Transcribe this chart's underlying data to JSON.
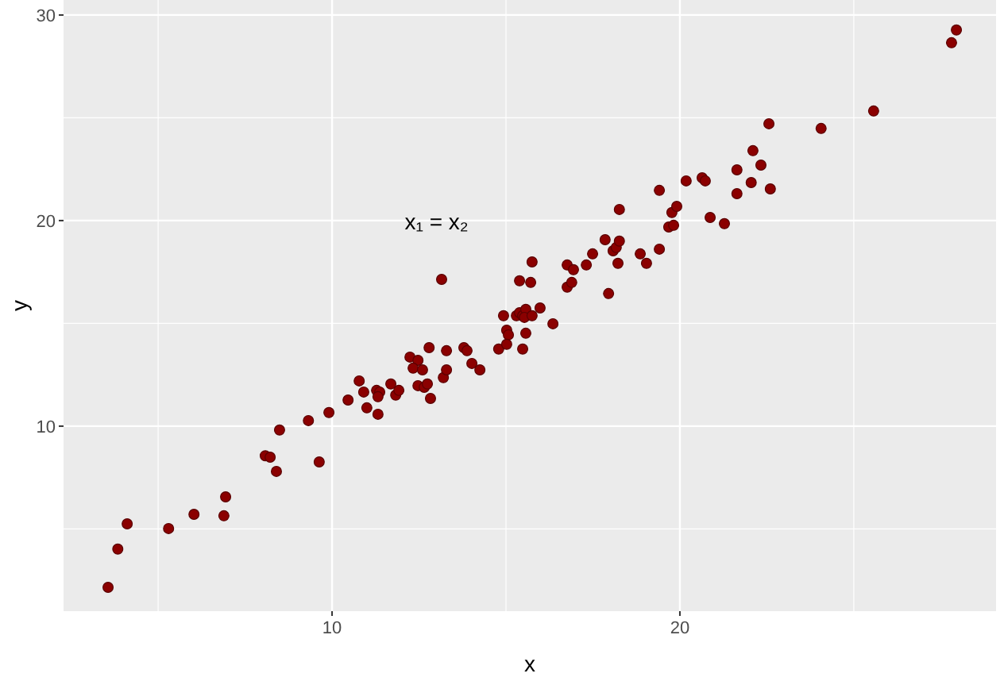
{
  "chart_data": {
    "type": "scatter",
    "xlabel": "x",
    "ylabel": "y",
    "xlim": [
      2.28,
      29.09
    ],
    "ylim": [
      1.0,
      30.73
    ],
    "xticks": [
      {
        "value": 5,
        "label": null
      },
      10,
      {
        "value": 15,
        "label": null
      },
      20,
      {
        "value": 25,
        "label": null
      }
    ],
    "yticks": [
      {
        "value": 5,
        "label": null
      },
      10,
      {
        "value": 15,
        "label": null
      },
      20,
      {
        "value": 25,
        "label": null
      },
      30
    ],
    "grid": true,
    "marker": "circle",
    "annotations": [
      "x₁ = x₂"
    ],
    "series": [
      {
        "color": "#8b0000",
        "x": [
          3.56,
          3.84,
          4.11,
          5.3,
          6.03,
          6.89,
          6.94,
          8.08,
          8.22,
          8.4,
          8.49,
          9.32,
          9.63,
          9.91,
          10.46,
          10.78,
          10.91,
          11.0,
          11.28,
          11.37,
          11.32,
          11.32,
          11.69,
          11.83,
          11.92,
          12.24,
          12.47,
          12.33,
          12.6,
          12.79,
          12.47,
          12.65,
          12.74,
          12.83,
          13.2,
          13.29,
          13.29,
          13.15,
          13.79,
          13.88,
          14.02,
          14.25,
          14.79,
          14.93,
          15.02,
          15.07,
          15.02,
          15.48,
          15.57,
          15.3,
          15.39,
          15.48,
          15.57,
          15.53,
          15.75,
          15.98,
          16.35,
          15.39,
          15.71,
          15.75,
          16.76,
          16.94,
          16.76,
          16.89,
          17.31,
          17.49,
          17.85,
          17.95,
          18.08,
          18.17,
          18.26,
          18.22,
          18.26,
          18.86,
          19.04,
          19.41,
          19.41,
          19.68,
          19.82,
          19.77,
          19.91,
          20.18,
          20.64,
          20.73,
          20.87,
          21.28,
          21.64,
          21.64,
          22.05,
          22.1,
          22.33,
          22.6,
          22.56,
          24.06,
          25.57,
          27.81,
          27.95
        ],
        "values": [
          2.16,
          4.02,
          5.25,
          5.02,
          5.71,
          5.64,
          6.56,
          8.56,
          8.49,
          7.8,
          9.81,
          10.27,
          8.26,
          10.66,
          11.27,
          12.2,
          11.66,
          10.89,
          11.74,
          11.66,
          11.43,
          10.58,
          12.05,
          11.51,
          11.74,
          13.36,
          13.2,
          12.82,
          12.74,
          13.82,
          11.97,
          11.89,
          12.05,
          11.35,
          12.36,
          13.67,
          12.74,
          17.14,
          13.82,
          13.67,
          13.05,
          12.74,
          13.75,
          15.37,
          14.67,
          14.44,
          13.98,
          13.75,
          14.52,
          15.37,
          15.52,
          15.37,
          15.68,
          15.29,
          15.37,
          15.75,
          14.98,
          17.07,
          16.99,
          17.99,
          17.84,
          17.61,
          16.76,
          16.99,
          17.84,
          18.38,
          19.07,
          16.45,
          18.53,
          18.69,
          19.0,
          17.92,
          20.54,
          18.38,
          17.92,
          18.61,
          21.47,
          19.69,
          19.77,
          20.39,
          20.69,
          21.93,
          22.08,
          21.93,
          20.15,
          19.85,
          21.31,
          22.47,
          21.85,
          23.4,
          22.7,
          21.54,
          24.71,
          24.48,
          25.33,
          28.65,
          29.27
        ]
      }
    ]
  }
}
